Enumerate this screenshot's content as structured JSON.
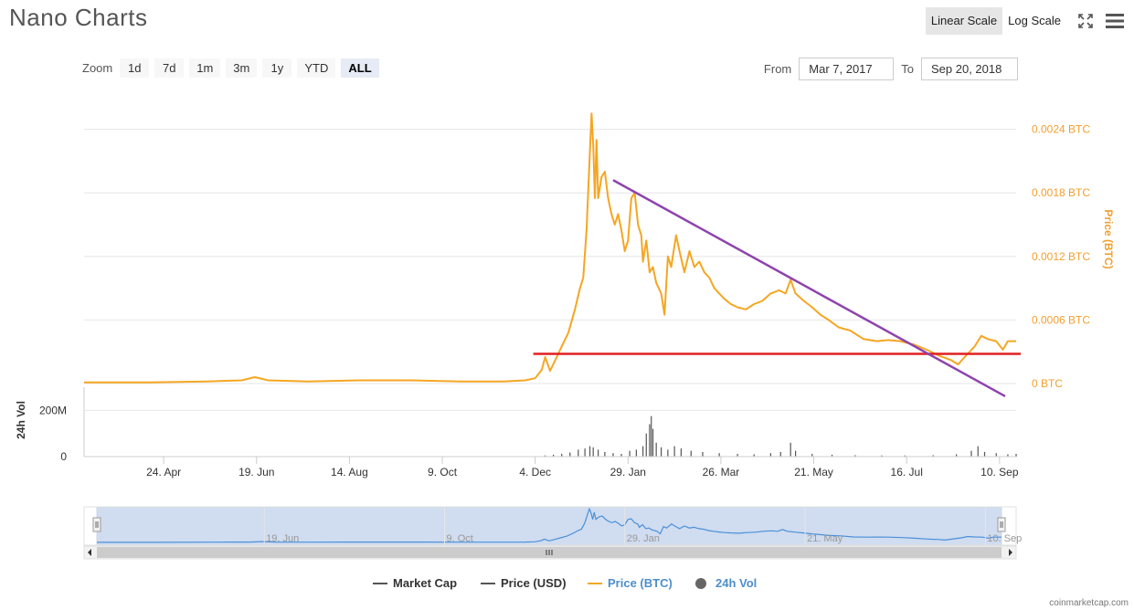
{
  "header": {
    "title": "Nano Charts",
    "scale_buttons": [
      "Linear Scale",
      "Log Scale"
    ],
    "active_scale": "Linear Scale",
    "icons": [
      "expand-icon",
      "menu-icon"
    ]
  },
  "zoom": {
    "label": "Zoom",
    "buttons": [
      "1d",
      "7d",
      "1m",
      "3m",
      "1y",
      "YTD",
      "ALL"
    ],
    "active": "ALL"
  },
  "range": {
    "from_label": "From",
    "from_value": "Mar 7, 2017",
    "to_label": "To",
    "to_value": "Sep 20, 2018"
  },
  "chart_data": {
    "type": "line",
    "x_axis": {
      "start": "2017-03-07",
      "end": "2018-09-20",
      "tick_labels": [
        "24. Apr",
        "19. Jun",
        "14. Aug",
        "9. Oct",
        "4. Dec",
        "29. Jan",
        "26. Mar",
        "21. May",
        "16. Jul",
        "10. Sep"
      ],
      "tick_dates": [
        "2017-04-24",
        "2017-06-19",
        "2017-08-14",
        "2017-10-09",
        "2017-12-04",
        "2018-01-29",
        "2018-03-26",
        "2018-05-21",
        "2018-07-16",
        "2018-09-10"
      ]
    },
    "y_axis": {
      "title": "Price (BTC)",
      "tick_labels": [
        "0 BTC",
        "0.0006 BTC",
        "0.0012 BTC",
        "0.0018 BTC",
        "0.0024 BTC"
      ],
      "ticks": [
        0,
        0.0006,
        0.0012,
        0.0018,
        0.0024
      ],
      "ylim": [
        0,
        0.0025
      ],
      "color": "#f7a35c"
    },
    "volume_axis": {
      "title": "24h Vol",
      "tick_labels": [
        "0",
        "200M"
      ],
      "ticks": [
        0,
        200
      ],
      "ylim": [
        0,
        300
      ]
    },
    "series": [
      {
        "name": "Price (BTC)",
        "color": "#f5a623",
        "points": [
          [
            "2017-03-07",
            1e-05
          ],
          [
            "2017-04-15",
            1e-05
          ],
          [
            "2017-05-20",
            2e-05
          ],
          [
            "2017-06-10",
            3e-05
          ],
          [
            "2017-06-18",
            6e-05
          ],
          [
            "2017-06-26",
            3e-05
          ],
          [
            "2017-07-20",
            2e-05
          ],
          [
            "2017-08-20",
            3e-05
          ],
          [
            "2017-09-20",
            3e-05
          ],
          [
            "2017-10-20",
            2e-05
          ],
          [
            "2017-11-15",
            2e-05
          ],
          [
            "2017-11-28",
            3e-05
          ],
          [
            "2017-12-04",
            5e-05
          ],
          [
            "2017-12-08",
            0.00013
          ],
          [
            "2017-12-10",
            0.00025
          ],
          [
            "2017-12-13",
            0.00012
          ],
          [
            "2017-12-17",
            0.00025
          ],
          [
            "2017-12-20",
            0.00035
          ],
          [
            "2017-12-24",
            0.00048
          ],
          [
            "2017-12-28",
            0.0007
          ],
          [
            "2017-12-31",
            0.0009
          ],
          [
            "2018-01-02",
            0.001
          ],
          [
            "2018-01-04",
            0.00145
          ],
          [
            "2018-01-06",
            0.0022
          ],
          [
            "2018-01-07",
            0.00255
          ],
          [
            "2018-01-08",
            0.00225
          ],
          [
            "2018-01-09",
            0.00175
          ],
          [
            "2018-01-10",
            0.0023
          ],
          [
            "2018-01-11",
            0.00175
          ],
          [
            "2018-01-13",
            0.00195
          ],
          [
            "2018-01-15",
            0.002
          ],
          [
            "2018-01-17",
            0.00175
          ],
          [
            "2018-01-19",
            0.0016
          ],
          [
            "2018-01-21",
            0.0015
          ],
          [
            "2018-01-23",
            0.0016
          ],
          [
            "2018-01-25",
            0.00145
          ],
          [
            "2018-01-27",
            0.00125
          ],
          [
            "2018-01-29",
            0.00135
          ],
          [
            "2018-01-31",
            0.00175
          ],
          [
            "2018-02-02",
            0.0018
          ],
          [
            "2018-02-04",
            0.0015
          ],
          [
            "2018-02-06",
            0.0014
          ],
          [
            "2018-02-07",
            0.00115
          ],
          [
            "2018-02-09",
            0.00135
          ],
          [
            "2018-02-11",
            0.00105
          ],
          [
            "2018-02-13",
            0.0011
          ],
          [
            "2018-02-15",
            0.00095
          ],
          [
            "2018-02-18",
            0.00085
          ],
          [
            "2018-02-20",
            0.00065
          ],
          [
            "2018-02-22",
            0.0012
          ],
          [
            "2018-02-24",
            0.0011
          ],
          [
            "2018-02-27",
            0.0014
          ],
          [
            "2018-03-01",
            0.00125
          ],
          [
            "2018-03-04",
            0.00105
          ],
          [
            "2018-03-07",
            0.00125
          ],
          [
            "2018-03-10",
            0.0011
          ],
          [
            "2018-03-13",
            0.00115
          ],
          [
            "2018-03-16",
            0.00105
          ],
          [
            "2018-03-19",
            0.001
          ],
          [
            "2018-03-22",
            0.0009
          ],
          [
            "2018-03-25",
            0.00085
          ],
          [
            "2018-03-28",
            0.0008
          ],
          [
            "2018-04-01",
            0.00075
          ],
          [
            "2018-04-05",
            0.00072
          ],
          [
            "2018-04-10",
            0.0007
          ],
          [
            "2018-04-15",
            0.00075
          ],
          [
            "2018-04-20",
            0.00078
          ],
          [
            "2018-04-25",
            0.00085
          ],
          [
            "2018-04-30",
            0.00088
          ],
          [
            "2018-05-04",
            0.00085
          ],
          [
            "2018-05-07",
            0.00098
          ],
          [
            "2018-05-10",
            0.00085
          ],
          [
            "2018-05-15",
            0.00078
          ],
          [
            "2018-05-20",
            0.00072
          ],
          [
            "2018-05-25",
            0.00065
          ],
          [
            "2018-05-30",
            0.0006
          ],
          [
            "2018-06-05",
            0.00053
          ],
          [
            "2018-06-12",
            0.0005
          ],
          [
            "2018-06-20",
            0.00042
          ],
          [
            "2018-06-28",
            0.0004
          ],
          [
            "2018-07-05",
            0.00041
          ],
          [
            "2018-07-12",
            0.0004
          ],
          [
            "2018-07-20",
            0.00037
          ],
          [
            "2018-07-28",
            0.00032
          ],
          [
            "2018-08-05",
            0.00026
          ],
          [
            "2018-08-12",
            0.00022
          ],
          [
            "2018-08-16",
            0.00018
          ],
          [
            "2018-08-20",
            0.00025
          ],
          [
            "2018-08-26",
            0.00035
          ],
          [
            "2018-08-30",
            0.00045
          ],
          [
            "2018-09-03",
            0.00042
          ],
          [
            "2018-09-08",
            0.0004
          ],
          [
            "2018-09-12",
            0.00032
          ],
          [
            "2018-09-15",
            0.0004
          ],
          [
            "2018-09-20",
            0.0004
          ]
        ]
      }
    ],
    "volume": [
      [
        "2017-12-10",
        5
      ],
      [
        "2017-12-15",
        8
      ],
      [
        "2017-12-20",
        12
      ],
      [
        "2017-12-25",
        18
      ],
      [
        "2017-12-30",
        30
      ],
      [
        "2018-01-03",
        35
      ],
      [
        "2018-01-06",
        45
      ],
      [
        "2018-01-08",
        40
      ],
      [
        "2018-01-11",
        30
      ],
      [
        "2018-01-15",
        20
      ],
      [
        "2018-01-20",
        15
      ],
      [
        "2018-01-25",
        12
      ],
      [
        "2018-01-30",
        25
      ],
      [
        "2018-02-03",
        30
      ],
      [
        "2018-02-07",
        45
      ],
      [
        "2018-02-09",
        100
      ],
      [
        "2018-02-11",
        140
      ],
      [
        "2018-02-12",
        175
      ],
      [
        "2018-02-13",
        120
      ],
      [
        "2018-02-15",
        60
      ],
      [
        "2018-02-18",
        40
      ],
      [
        "2018-02-22",
        30
      ],
      [
        "2018-02-26",
        45
      ],
      [
        "2018-03-02",
        35
      ],
      [
        "2018-03-08",
        25
      ],
      [
        "2018-03-15",
        20
      ],
      [
        "2018-03-25",
        15
      ],
      [
        "2018-04-05",
        12
      ],
      [
        "2018-04-15",
        10
      ],
      [
        "2018-04-25",
        15
      ],
      [
        "2018-05-01",
        20
      ],
      [
        "2018-05-07",
        60
      ],
      [
        "2018-05-10",
        25
      ],
      [
        "2018-05-20",
        12
      ],
      [
        "2018-06-01",
        8
      ],
      [
        "2018-06-15",
        6
      ],
      [
        "2018-07-01",
        5
      ],
      [
        "2018-07-15",
        5
      ],
      [
        "2018-08-01",
        6
      ],
      [
        "2018-08-15",
        10
      ],
      [
        "2018-08-24",
        25
      ],
      [
        "2018-08-28",
        45
      ],
      [
        "2018-09-01",
        20
      ],
      [
        "2018-09-08",
        15
      ],
      [
        "2018-09-15",
        10
      ],
      [
        "2018-09-20",
        12
      ]
    ],
    "annotations": [
      {
        "type": "horizontal-line",
        "color": "#e02020",
        "from": "2017-12-04",
        "to": "2018-09-20",
        "value": 0.00028
      },
      {
        "type": "trend-line",
        "color": "#8e44ad",
        "from": [
          "2018-01-20",
          0.00192
        ],
        "to": [
          "2018-09-20",
          -0.00012
        ]
      }
    ],
    "navigator": {
      "tick_labels": [
        "19. Jun",
        "9. Oct",
        "29. Jan",
        "21. May",
        "10. Sep"
      ],
      "tick_dates": [
        "2017-06-19",
        "2017-10-09",
        "2018-01-29",
        "2018-05-21",
        "2018-09-10"
      ]
    },
    "legend": {
      "placement": "bottom-center",
      "items": [
        {
          "name": "Market Cap",
          "color": "#555555",
          "marker": "line",
          "active": false
        },
        {
          "name": "Price (USD)",
          "color": "#555555",
          "marker": "line",
          "active": false
        },
        {
          "name": "Price (BTC)",
          "color": "#f5a623",
          "marker": "line",
          "active": true
        },
        {
          "name": "24h Vol",
          "color": "#666666",
          "marker": "circle",
          "active": true
        }
      ]
    },
    "credit": "coinmarketcap.com"
  }
}
